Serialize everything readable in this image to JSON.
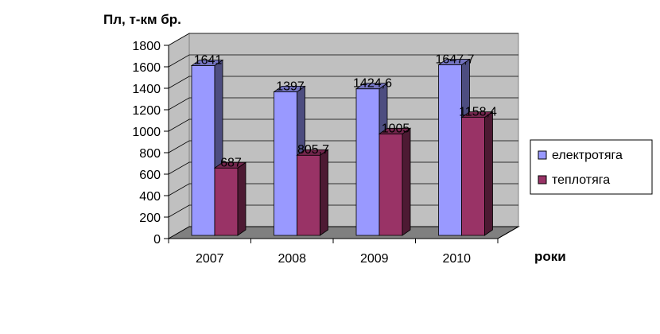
{
  "chart_data": {
    "type": "bar",
    "ylabel": "Пл, т-км бр.",
    "xlabel": "роки",
    "categories": [
      "2007",
      "2008",
      "2009",
      "2010"
    ],
    "series": [
      {
        "name": "електротяга",
        "values": [
          1641,
          1397,
          1424.6,
          1647.7
        ],
        "labels": [
          "1641",
          "1397",
          "1424,6",
          "1647,7"
        ],
        "color": "#9999ff"
      },
      {
        "name": "теплотяга",
        "values": [
          687,
          805.7,
          1005,
          1158.4
        ],
        "labels": [
          "687",
          "805,7",
          "1005",
          "1158,4"
        ],
        "color": "#993366"
      }
    ],
    "ylim": [
      0,
      1800
    ],
    "yticks": [
      0,
      200,
      400,
      600,
      800,
      1000,
      1200,
      1400,
      1600,
      1800
    ],
    "grid": true,
    "legend_position": "right",
    "wall_color": "#c0c0c0",
    "floor_color": "#808080"
  }
}
